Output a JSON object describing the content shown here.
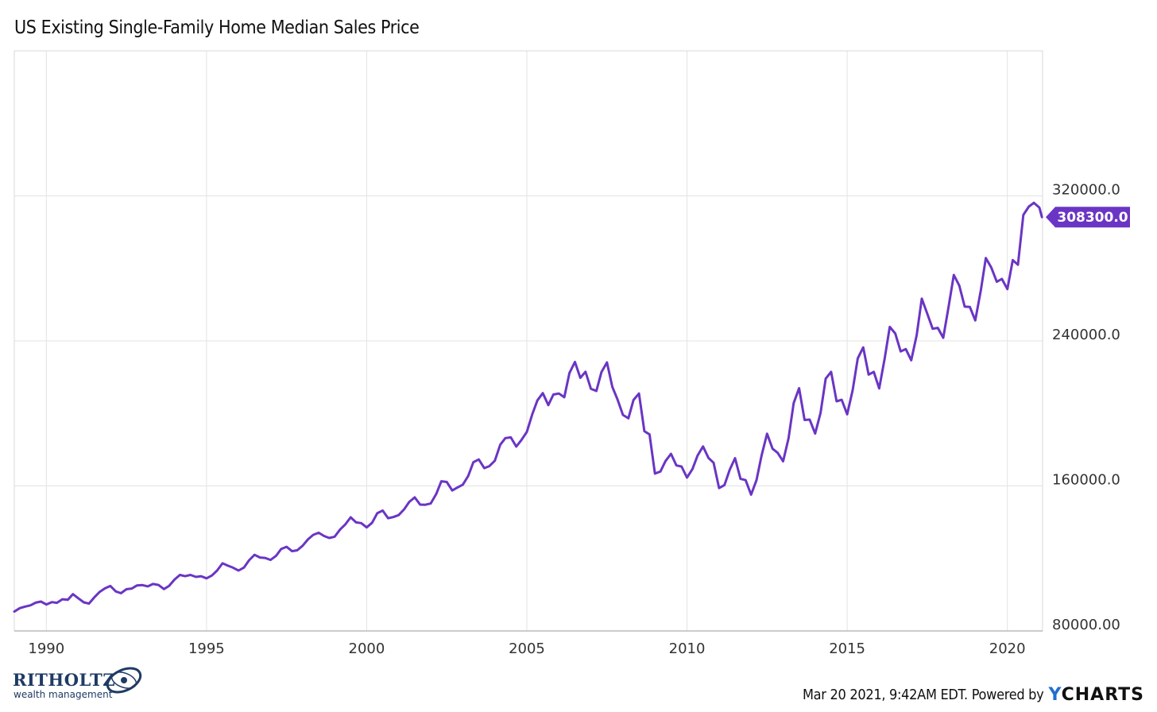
{
  "page": {
    "title": "US Existing Single-Family Home Median Sales Price",
    "credit_text": "Mar 20 2021, 9:42AM EDT. Powered by",
    "ycharts_y": "Y",
    "ycharts_rest": "CHARTS",
    "logo_name": "RITHOLTZ",
    "logo_sub": "wealth management"
  },
  "colors": {
    "line": "#6a35c4",
    "grid": "#e3e3e3",
    "axis_text": "#333333",
    "badge_bg": "#6a35c4",
    "badge_text": "#ffffff",
    "logo": "#1f3a64"
  },
  "chart_data": {
    "type": "line",
    "title": "US Existing Single-Family Home Median Sales Price",
    "x_ticks": [
      "1990",
      "1995",
      "2000",
      "2005",
      "2010",
      "2015",
      "2020"
    ],
    "x_tick_values": [
      1990,
      1995,
      2000,
      2005,
      2010,
      2015,
      2020
    ],
    "y_ticks": [
      "80000.00",
      "160000.0",
      "240000.0",
      "320000.0"
    ],
    "y_tick_values": [
      80000,
      160000,
      240000,
      320000
    ],
    "xlim": [
      1989.0,
      2021.1
    ],
    "ylim": [
      80000,
      400000
    ],
    "last_value_label": "308300.0",
    "grid": true,
    "series": [
      {
        "points": [
          [
            1989.0,
            90700
          ],
          [
            1989.17,
            92600
          ],
          [
            1989.33,
            93400
          ],
          [
            1989.5,
            94100
          ],
          [
            1989.67,
            95600
          ],
          [
            1989.83,
            96200
          ],
          [
            1990.0,
            94600
          ],
          [
            1990.17,
            95900
          ],
          [
            1990.33,
            95500
          ],
          [
            1990.5,
            97500
          ],
          [
            1990.67,
            97200
          ],
          [
            1990.83,
            100300
          ],
          [
            1991.0,
            98000
          ],
          [
            1991.17,
            95800
          ],
          [
            1991.33,
            95100
          ],
          [
            1991.5,
            98600
          ],
          [
            1991.67,
            101600
          ],
          [
            1991.83,
            103500
          ],
          [
            1992.0,
            104800
          ],
          [
            1992.17,
            101800
          ],
          [
            1992.33,
            100800
          ],
          [
            1992.5,
            103000
          ],
          [
            1992.67,
            103400
          ],
          [
            1992.83,
            105100
          ],
          [
            1993.0,
            105300
          ],
          [
            1993.17,
            104600
          ],
          [
            1993.33,
            105900
          ],
          [
            1993.5,
            105400
          ],
          [
            1993.67,
            103100
          ],
          [
            1993.83,
            104800
          ],
          [
            1994.0,
            108300
          ],
          [
            1994.17,
            110900
          ],
          [
            1994.33,
            110200
          ],
          [
            1994.5,
            110900
          ],
          [
            1994.67,
            109800
          ],
          [
            1994.83,
            110200
          ],
          [
            1995.0,
            109000
          ],
          [
            1995.17,
            110600
          ],
          [
            1995.33,
            113300
          ],
          [
            1995.5,
            117300
          ],
          [
            1995.67,
            116000
          ],
          [
            1995.83,
            114900
          ],
          [
            1996.0,
            113300
          ],
          [
            1996.17,
            115000
          ],
          [
            1996.33,
            119000
          ],
          [
            1996.5,
            122000
          ],
          [
            1996.67,
            120500
          ],
          [
            1996.83,
            120300
          ],
          [
            1997.0,
            119200
          ],
          [
            1997.17,
            121400
          ],
          [
            1997.33,
            125200
          ],
          [
            1997.5,
            126400
          ],
          [
            1997.67,
            124000
          ],
          [
            1997.83,
            124500
          ],
          [
            1998.0,
            127000
          ],
          [
            1998.17,
            130600
          ],
          [
            1998.33,
            133000
          ],
          [
            1998.5,
            134200
          ],
          [
            1998.67,
            132400
          ],
          [
            1998.83,
            131300
          ],
          [
            1999.0,
            132000
          ],
          [
            1999.17,
            136000
          ],
          [
            1999.33,
            138700
          ],
          [
            1999.5,
            142700
          ],
          [
            1999.67,
            139900
          ],
          [
            1999.83,
            139500
          ],
          [
            2000.0,
            137100
          ],
          [
            2000.17,
            139700
          ],
          [
            2000.33,
            144900
          ],
          [
            2000.5,
            146400
          ],
          [
            2000.67,
            142200
          ],
          [
            2000.83,
            142800
          ],
          [
            2001.0,
            143900
          ],
          [
            2001.17,
            147100
          ],
          [
            2001.33,
            151200
          ],
          [
            2001.5,
            153700
          ],
          [
            2001.67,
            149700
          ],
          [
            2001.83,
            149600
          ],
          [
            2002.0,
            150300
          ],
          [
            2002.17,
            155500
          ],
          [
            2002.33,
            162600
          ],
          [
            2002.5,
            162200
          ],
          [
            2002.67,
            157500
          ],
          [
            2002.83,
            159100
          ],
          [
            2003.0,
            160700
          ],
          [
            2003.17,
            165500
          ],
          [
            2003.33,
            173100
          ],
          [
            2003.5,
            174600
          ],
          [
            2003.67,
            169800
          ],
          [
            2003.83,
            170900
          ],
          [
            2004.0,
            173900
          ],
          [
            2004.17,
            182700
          ],
          [
            2004.33,
            186400
          ],
          [
            2004.5,
            186800
          ],
          [
            2004.67,
            181700
          ],
          [
            2004.83,
            185300
          ],
          [
            2005.0,
            189800
          ],
          [
            2005.17,
            199500
          ],
          [
            2005.33,
            207200
          ],
          [
            2005.5,
            211200
          ],
          [
            2005.67,
            204600
          ],
          [
            2005.83,
            210400
          ],
          [
            2006.0,
            211000
          ],
          [
            2006.17,
            208900
          ],
          [
            2006.33,
            222300
          ],
          [
            2006.5,
            228400
          ],
          [
            2006.67,
            219600
          ],
          [
            2006.83,
            223000
          ],
          [
            2007.0,
            213600
          ],
          [
            2007.17,
            212400
          ],
          [
            2007.33,
            222800
          ],
          [
            2007.5,
            228100
          ],
          [
            2007.67,
            214600
          ],
          [
            2007.83,
            207700
          ],
          [
            2008.0,
            199200
          ],
          [
            2008.17,
            197300
          ],
          [
            2008.33,
            207400
          ],
          [
            2008.5,
            211000
          ],
          [
            2008.67,
            190200
          ],
          [
            2008.83,
            188400
          ],
          [
            2009.0,
            166800
          ],
          [
            2009.17,
            168000
          ],
          [
            2009.33,
            173700
          ],
          [
            2009.5,
            177700
          ],
          [
            2009.67,
            171300
          ],
          [
            2009.83,
            170700
          ],
          [
            2010.0,
            164600
          ],
          [
            2010.17,
            169300
          ],
          [
            2010.33,
            176700
          ],
          [
            2010.5,
            181800
          ],
          [
            2010.67,
            175400
          ],
          [
            2010.83,
            172800
          ],
          [
            2011.0,
            158800
          ],
          [
            2011.17,
            160500
          ],
          [
            2011.33,
            168800
          ],
          [
            2011.5,
            175300
          ],
          [
            2011.67,
            163900
          ],
          [
            2011.83,
            163200
          ],
          [
            2012.0,
            155200
          ],
          [
            2012.17,
            163200
          ],
          [
            2012.33,
            177000
          ],
          [
            2012.5,
            188800
          ],
          [
            2012.67,
            180500
          ],
          [
            2012.83,
            178300
          ],
          [
            2013.0,
            173600
          ],
          [
            2013.17,
            186200
          ],
          [
            2013.33,
            205700
          ],
          [
            2013.5,
            213900
          ],
          [
            2013.67,
            196400
          ],
          [
            2013.83,
            196600
          ],
          [
            2014.0,
            188900
          ],
          [
            2014.17,
            200300
          ],
          [
            2014.33,
            219200
          ],
          [
            2014.5,
            222900
          ],
          [
            2014.67,
            206700
          ],
          [
            2014.83,
            207500
          ],
          [
            2015.0,
            199500
          ],
          [
            2015.17,
            212800
          ],
          [
            2015.33,
            230300
          ],
          [
            2015.5,
            236400
          ],
          [
            2015.67,
            221400
          ],
          [
            2015.83,
            222900
          ],
          [
            2016.0,
            213800
          ],
          [
            2016.17,
            230300
          ],
          [
            2016.33,
            247700
          ],
          [
            2016.5,
            244100
          ],
          [
            2016.67,
            234200
          ],
          [
            2016.83,
            235500
          ],
          [
            2017.0,
            229300
          ],
          [
            2017.17,
            243200
          ],
          [
            2017.33,
            263300
          ],
          [
            2017.5,
            255000
          ],
          [
            2017.67,
            246700
          ],
          [
            2017.83,
            247200
          ],
          [
            2018.0,
            241700
          ],
          [
            2018.17,
            259300
          ],
          [
            2018.33,
            276400
          ],
          [
            2018.5,
            270500
          ],
          [
            2018.67,
            258900
          ],
          [
            2018.83,
            258700
          ],
          [
            2019.0,
            251300
          ],
          [
            2019.17,
            267600
          ],
          [
            2019.33,
            285700
          ],
          [
            2019.5,
            280400
          ],
          [
            2019.67,
            272600
          ],
          [
            2019.83,
            274200
          ],
          [
            2020.0,
            268600
          ],
          [
            2020.17,
            284600
          ],
          [
            2020.33,
            282000
          ],
          [
            2020.5,
            309500
          ],
          [
            2020.67,
            314100
          ],
          [
            2020.83,
            316200
          ],
          [
            2021.0,
            313500
          ],
          [
            2021.08,
            308300
          ]
        ]
      }
    ]
  }
}
